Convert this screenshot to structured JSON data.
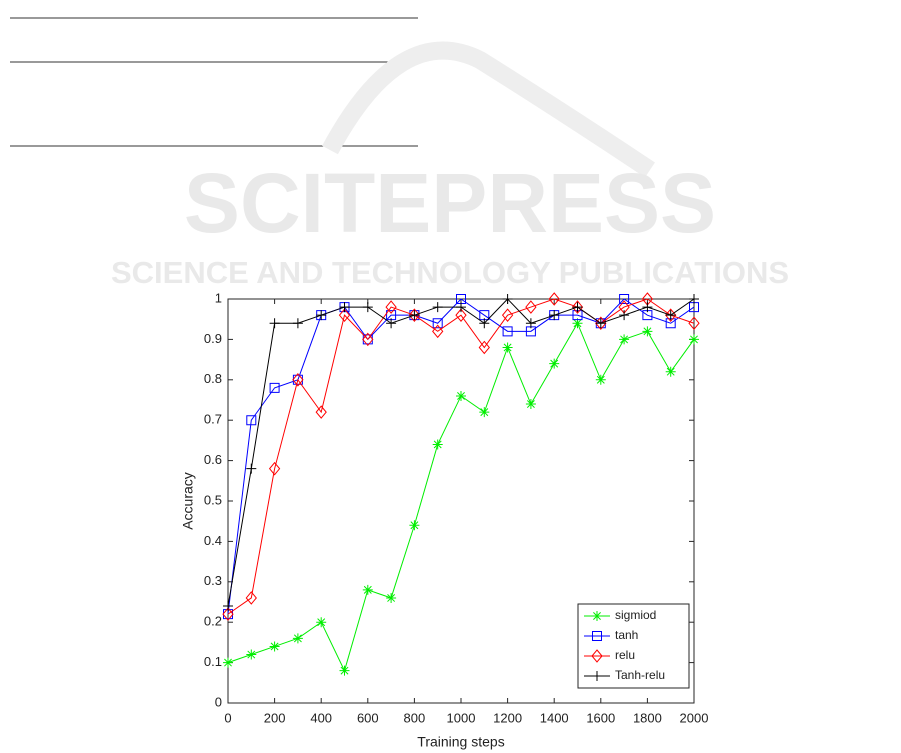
{
  "watermark": {
    "brand": "SCITEPRESS",
    "tagline": "SCIENCE AND TECHNOLOGY PUBLICATIONS"
  },
  "chart_data": {
    "type": "line",
    "x_label": "Training steps",
    "y_label": "Accuracy",
    "x": [
      0,
      100,
      200,
      300,
      400,
      500,
      600,
      700,
      800,
      900,
      1000,
      1100,
      1200,
      1300,
      1400,
      1500,
      1600,
      1700,
      1800,
      1900,
      2000
    ],
    "series": [
      {
        "name": "sigmiod",
        "color": "#00ee00",
        "marker": "star",
        "values": [
          0.1,
          0.12,
          0.14,
          0.16,
          0.2,
          0.08,
          0.28,
          0.26,
          0.44,
          0.64,
          0.76,
          0.72,
          0.88,
          0.74,
          0.84,
          0.94,
          0.8,
          0.9,
          0.92,
          0.82,
          0.9
        ]
      },
      {
        "name": "tanh",
        "color": "#0000ff",
        "marker": "square",
        "values": [
          0.22,
          0.7,
          0.78,
          0.8,
          0.96,
          0.98,
          0.9,
          0.96,
          0.96,
          0.94,
          1.0,
          0.96,
          0.92,
          0.92,
          0.96,
          0.96,
          0.94,
          1.0,
          0.96,
          0.94,
          0.98
        ]
      },
      {
        "name": "relu",
        "color": "#ff0000",
        "marker": "diamond",
        "values": [
          0.22,
          0.26,
          0.58,
          0.8,
          0.72,
          0.96,
          0.9,
          0.98,
          0.96,
          0.92,
          0.96,
          0.88,
          0.96,
          0.98,
          1.0,
          0.98,
          0.94,
          0.98,
          1.0,
          0.96,
          0.94
        ]
      },
      {
        "name": "Tanh-relu",
        "color": "#000000",
        "marker": "plus",
        "values": [
          0.24,
          0.58,
          0.94,
          0.94,
          0.96,
          0.98,
          0.98,
          0.94,
          0.96,
          0.98,
          0.98,
          0.94,
          1.0,
          0.94,
          0.96,
          0.98,
          0.94,
          0.96,
          0.98,
          0.96,
          1.0
        ]
      }
    ],
    "xlim": [
      0,
      2000
    ],
    "xticks": [
      0,
      200,
      400,
      600,
      800,
      1000,
      1200,
      1400,
      1600,
      1800,
      2000
    ],
    "ylim": [
      0,
      1
    ],
    "yticks": [
      0,
      0.1,
      0.2,
      0.3,
      0.4,
      0.5,
      0.6,
      0.7,
      0.8,
      0.9,
      1
    ],
    "legend": "lower-right",
    "grid": false
  }
}
